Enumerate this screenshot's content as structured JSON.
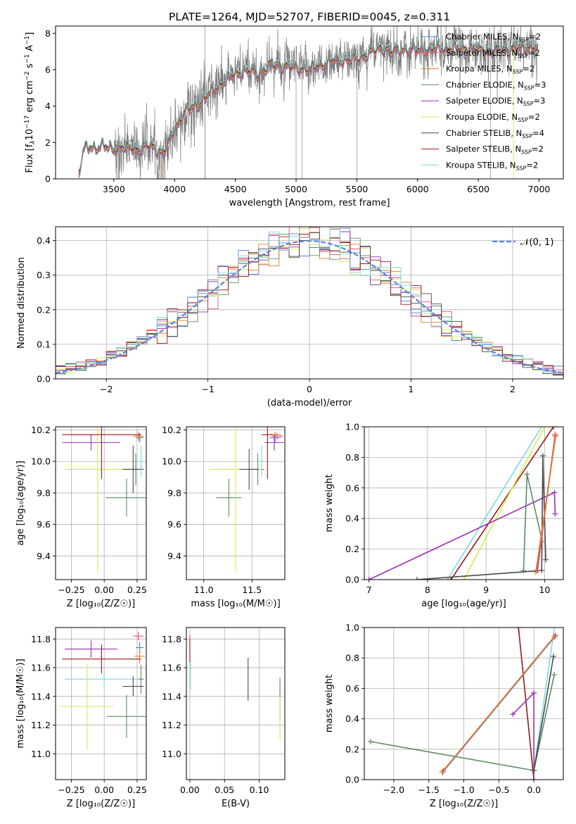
{
  "colors": {
    "chabrier_miles": "#4d7fd6",
    "salpeter_miles": "#e34f7a",
    "kroupa_miles": "#e07b22",
    "chabrier_elodie": "#5b8a62",
    "salpeter_elodie": "#9a2fb5",
    "kroupa_elodie": "#d6ea55",
    "chabrier_stelib": "#4a4a4a",
    "salpeter_stelib": "#a01515",
    "kroupa_stelib": "#7fd8e0",
    "data": "#7a7a7a",
    "gauss": "#5b86d6"
  },
  "chart_data": [
    {
      "id": "spectrum",
      "type": "line",
      "title": "PLATE=1264, MJD=52707, FIBERID=0045, z=0.311",
      "xlabel": "wavelength [Angstrom, rest frame]",
      "ylabel_parts": [
        "Flux [f",
        "λ",
        "10",
        "−17",
        " erg cm",
        "−2",
        " s",
        "−1",
        " A",
        "−1",
        "]"
      ],
      "xlim": [
        3020,
        7200
      ],
      "ylim": [
        0,
        8.4
      ],
      "xticks": [
        3500,
        4000,
        4500,
        5000,
        5500,
        6000,
        6500,
        7000
      ],
      "yticks": [
        0,
        2,
        4,
        6,
        8
      ],
      "data_start": 3210,
      "data_end": 6990,
      "model_anchors": {
        "x": [
          3210,
          3250,
          3300,
          3350,
          3400,
          3450,
          3500,
          3550,
          3600,
          3650,
          3700,
          3750,
          3800,
          3850,
          3900,
          3950,
          4000,
          4100,
          4200,
          4300,
          4400,
          4500,
          4600,
          4700,
          4800,
          4900,
          5000,
          5100,
          5200,
          5300,
          5400,
          5500,
          5600,
          5700,
          5800,
          5900,
          6000,
          6200,
          6400,
          6600,
          6800,
          6990
        ],
        "y": [
          0.3,
          1.6,
          1.75,
          1.7,
          1.85,
          1.7,
          1.65,
          1.75,
          1.7,
          1.75,
          1.6,
          1.75,
          1.85,
          1.6,
          1.4,
          2.0,
          2.8,
          3.8,
          4.1,
          4.8,
          5.3,
          5.8,
          5.95,
          5.8,
          6.3,
          6.2,
          6.1,
          6.0,
          6.25,
          6.5,
          6.5,
          6.6,
          6.9,
          7.2,
          7.0,
          7.1,
          7.05,
          7.15,
          7.2,
          7.0,
          7.2,
          7.25
        ]
      },
      "series": [
        {
          "name": "Chabrier MILES",
          "nssp": "2",
          "color_key": "chabrier_miles"
        },
        {
          "name": "Salpeter MILES",
          "nssp": "2",
          "color_key": "salpeter_miles"
        },
        {
          "name": "Kroupa MILES",
          "nssp": "2",
          "color_key": "kroupa_miles"
        },
        {
          "name": "Chabrier ELODIE",
          "nssp": "3",
          "color_key": "chabrier_elodie"
        },
        {
          "name": "Salpeter ELODIE",
          "nssp": "3",
          "color_key": "salpeter_elodie"
        },
        {
          "name": "Kroupa ELODIE",
          "nssp": "2",
          "color_key": "kroupa_elodie"
        },
        {
          "name": "Chabrier STELIB",
          "nssp": "4",
          "color_key": "chabrier_stelib"
        },
        {
          "name": "Salpeter STELIB",
          "nssp": "2",
          "color_key": "salpeter_stelib"
        },
        {
          "name": "Kroupa STELIB",
          "nssp": "2",
          "color_key": "kroupa_stelib"
        }
      ],
      "legend": "upper right",
      "grid": false
    },
    {
      "id": "residuals",
      "type": "histogram",
      "xlabel": "(data-model)/error",
      "ylabel": "Normed distribution",
      "xlim": [
        -2.5,
        2.5
      ],
      "ylim": [
        0,
        0.44
      ],
      "xticks": [
        -2,
        -1,
        0,
        1,
        2
      ],
      "yticks": [
        0.0,
        0.1,
        0.2,
        0.3,
        0.4
      ],
      "bin_width": 0.1,
      "grid": true,
      "legend": "upper right",
      "gauss_label": "𝒩(0, 1)"
    },
    {
      "id": "age_vs_Z",
      "type": "errorbar",
      "xlabel": "Z [log₁₀(Z/Z☉)]",
      "ylabel": "age  [log₁₀(age/yr)]",
      "xlim": [
        -0.37,
        0.32
      ],
      "ylim": [
        9.25,
        10.22
      ],
      "xticks": [
        -0.25,
        0.0,
        0.25
      ],
      "yticks": [
        9.4,
        9.6,
        9.8,
        10.0,
        10.2
      ],
      "grid": true,
      "points": [
        {
          "c": "chabrier_miles",
          "x": 0.27,
          "y": 10.15,
          "xe": 0.03,
          "ye": 0.03
        },
        {
          "c": "salpeter_miles",
          "x": 0.27,
          "y": 10.16,
          "xe": 0.03,
          "ye": 0.02
        },
        {
          "c": "kroupa_miles",
          "x": 0.26,
          "y": 10.16,
          "xe": 0.04,
          "ye": 0.03
        },
        {
          "c": "chabrier_elodie",
          "x": 0.17,
          "y": 9.77,
          "xe": 0.16,
          "ye": 0.12
        },
        {
          "c": "chabrier_elodie",
          "x": 0.24,
          "y": 9.95,
          "xe": 0.06,
          "ye": 0.1
        },
        {
          "c": "salpeter_elodie",
          "x": -0.1,
          "y": 10.12,
          "xe": 0.22,
          "ye": 0.05
        },
        {
          "c": "kroupa_elodie",
          "x": -0.05,
          "y": 9.95,
          "xe": 0.26,
          "ye": 0.65
        },
        {
          "c": "chabrier_stelib",
          "x": 0.22,
          "y": 9.95,
          "xe": 0.08,
          "ye": 0.15
        },
        {
          "c": "salpeter_stelib",
          "x": -0.02,
          "y": 10.17,
          "xe": 0.3,
          "ye": 0.28
        },
        {
          "c": "kroupa_stelib",
          "x": 0.28,
          "y": 10.0,
          "xe": 0.02,
          "ye": 0.1
        }
      ]
    },
    {
      "id": "age_vs_mass",
      "type": "errorbar",
      "xlabel": "mass [log₁₀(M/M☉)]",
      "ylabel": "",
      "xlim": [
        10.82,
        11.84
      ],
      "ylim": [
        9.25,
        10.22
      ],
      "xticks": [
        11.0,
        11.5
      ],
      "yticks": [
        9.4,
        9.6,
        9.8,
        10.0,
        10.2
      ],
      "grid": true,
      "points": [
        {
          "c": "chabrier_miles",
          "x": 11.74,
          "y": 10.15,
          "xe": 0.06,
          "ye": 0.03
        },
        {
          "c": "salpeter_miles",
          "x": 11.76,
          "y": 10.16,
          "xe": 0.06,
          "ye": 0.02
        },
        {
          "c": "kroupa_miles",
          "x": 11.74,
          "y": 10.17,
          "xe": 0.06,
          "ye": 0.02
        },
        {
          "c": "chabrier_elodie",
          "x": 11.26,
          "y": 9.77,
          "xe": 0.13,
          "ye": 0.12
        },
        {
          "c": "chabrier_elodie",
          "x": 11.56,
          "y": 9.95,
          "xe": 0.07,
          "ye": 0.1
        },
        {
          "c": "salpeter_elodie",
          "x": 11.73,
          "y": 10.12,
          "xe": 0.1,
          "ye": 0.05
        },
        {
          "c": "kroupa_elodie",
          "x": 11.33,
          "y": 9.95,
          "xe": 0.27,
          "ye": 0.65
        },
        {
          "c": "chabrier_stelib",
          "x": 11.47,
          "y": 9.95,
          "xe": 0.1,
          "ye": 0.13
        },
        {
          "c": "salpeter_stelib",
          "x": 11.66,
          "y": 10.17,
          "xe": 0.06,
          "ye": 0.28
        },
        {
          "c": "kroupa_stelib",
          "x": 11.6,
          "y": 10.0,
          "xe": 0.04,
          "ye": 0.1
        }
      ]
    },
    {
      "id": "massweight_vs_age",
      "type": "line",
      "xlabel": "age  [log₁₀(age/yr)]",
      "ylabel": "mass weight",
      "xlim": [
        6.92,
        10.32
      ],
      "ylim": [
        0.0,
        1.0
      ],
      "xticks": [
        7,
        8,
        9,
        10
      ],
      "yticks": [
        0.0,
        0.2,
        0.4,
        0.6,
        0.8,
        1.0
      ],
      "grid": true,
      "series": [
        {
          "c": "kroupa_stelib",
          "x": [
            8.34,
            9.98
          ],
          "y": [
            0.0,
            1.02
          ]
        },
        {
          "c": "salpeter_stelib",
          "x": [
            8.4,
            10.15
          ],
          "y": [
            0.0,
            1.0
          ]
        },
        {
          "c": "kroupa_elodie",
          "x": [
            8.62,
            10.0
          ],
          "y": [
            0.0,
            1.0
          ]
        },
        {
          "c": "salpeter_elodie",
          "x": [
            7.0,
            10.17,
            10.18
          ],
          "y": [
            0.0,
            0.57,
            0.43
          ]
        },
        {
          "c": "chabrier_stelib",
          "x": [
            7.82,
            9.95,
            9.97,
            10.02
          ],
          "y": [
            0.0,
            0.06,
            0.81,
            0.13
          ]
        },
        {
          "c": "chabrier_elodie",
          "x": [
            9.64,
            9.7,
            9.96
          ],
          "y": [
            0.06,
            0.69,
            0.25
          ]
        },
        {
          "c": "chabrier_miles",
          "x": [
            9.87,
            10.18
          ],
          "y": [
            0.06,
            0.94
          ]
        },
        {
          "c": "salpeter_miles",
          "x": [
            9.88,
            10.18
          ],
          "y": [
            0.06,
            0.95
          ]
        },
        {
          "c": "kroupa_miles",
          "x": [
            9.85,
            10.19
          ],
          "y": [
            0.05,
            0.94
          ]
        }
      ]
    },
    {
      "id": "mass_vs_Z",
      "type": "errorbar",
      "xlabel": "Z [log₁₀(Z/Z☉)]",
      "ylabel": "mass [log₁₀(M/M☉)]",
      "xlim": [
        -0.37,
        0.32
      ],
      "ylim": [
        10.82,
        11.88
      ],
      "xticks": [
        -0.25,
        0.0,
        0.25
      ],
      "yticks": [
        11.0,
        11.2,
        11.4,
        11.6,
        11.8
      ],
      "grid": true,
      "points": [
        {
          "c": "salpeter_miles",
          "x": 0.26,
          "y": 11.82,
          "xe": 0.04,
          "ye": 0.03
        },
        {
          "c": "chabrier_miles",
          "x": 0.27,
          "y": 11.74,
          "xe": 0.03,
          "ye": 0.04
        },
        {
          "c": "kroupa_miles",
          "x": 0.27,
          "y": 11.68,
          "xe": 0.04,
          "ye": 0.05
        },
        {
          "c": "salpeter_elodie",
          "x": -0.1,
          "y": 11.73,
          "xe": 0.2,
          "ye": 0.06
        },
        {
          "c": "salpeter_stelib",
          "x": -0.02,
          "y": 11.66,
          "xe": 0.3,
          "ye": 0.1
        },
        {
          "c": "kroupa_stelib",
          "x": 0.0,
          "y": 11.52,
          "xe": 0.3,
          "ye": 0.05
        },
        {
          "c": "chabrier_stelib",
          "x": 0.22,
          "y": 11.47,
          "xe": 0.08,
          "ye": 0.07
        },
        {
          "c": "kroupa_elodie",
          "x": -0.13,
          "y": 11.33,
          "xe": 0.2,
          "ye": 0.3
        },
        {
          "c": "chabrier_elodie",
          "x": 0.17,
          "y": 11.26,
          "xe": 0.15,
          "ye": 0.15
        },
        {
          "c": "chabrier_elodie",
          "x": 0.28,
          "y": 11.52,
          "xe": 0.02,
          "ye": 0.1
        }
      ]
    },
    {
      "id": "mass_vs_ebv",
      "type": "errorbar",
      "xlabel": "E(B-V)",
      "ylabel": "",
      "xlim": [
        -0.005,
        0.137
      ],
      "ylim": [
        10.82,
        11.88
      ],
      "xticks": [
        0.0,
        0.05,
        0.1
      ],
      "yticks": [
        11.0,
        11.2,
        11.4,
        11.6,
        11.8
      ],
      "grid": true,
      "points": [
        {
          "c": "salpeter_miles",
          "x": 0.0,
          "y": 11.8,
          "xe": 0.0,
          "ye": 0.03
        },
        {
          "c": "salpeter_stelib",
          "x": 0.0,
          "y": 11.72,
          "xe": 0.0,
          "ye": 0.08
        },
        {
          "c": "kroupa_stelib",
          "x": 0.001,
          "y": 11.55,
          "xe": 0.0,
          "ye": 0.1
        },
        {
          "c": "chabrier_stelib",
          "x": 0.084,
          "y": 11.52,
          "xe": 0.0,
          "ye": 0.15
        },
        {
          "c": "chabrier_elodie",
          "x": 0.13,
          "y": 11.38,
          "xe": 0.0,
          "ye": 0.15
        },
        {
          "c": "kroupa_elodie",
          "x": 0.13,
          "y": 11.25,
          "xe": 0.0,
          "ye": 0.15
        }
      ]
    },
    {
      "id": "massweight_vs_Z",
      "type": "line",
      "xlabel": "Z [log₁₀(Z/Z☉)]",
      "ylabel": "mass weight",
      "xlim": [
        -2.42,
        0.42
      ],
      "ylim": [
        0.0,
        1.0
      ],
      "xticks": [
        -2.0,
        -1.5,
        -1.0,
        -0.5,
        0.0
      ],
      "yticks": [
        0.0,
        0.2,
        0.4,
        0.6,
        0.8,
        1.0
      ],
      "grid": true,
      "series": [
        {
          "c": "chabrier_elodie",
          "x": [
            -2.33,
            0.0,
            0.29
          ],
          "y": [
            0.25,
            0.06,
            0.69
          ]
        },
        {
          "c": "salpeter_stelib",
          "x": [
            -0.22,
            0.0
          ],
          "y": [
            1.0,
            0.0
          ]
        },
        {
          "c": "salpeter_elodie",
          "x": [
            -0.3,
            0.0,
            0.0
          ],
          "y": [
            0.43,
            0.57,
            0.0
          ]
        },
        {
          "c": "kroupa_stelib",
          "x": [
            0.0,
            0.3
          ],
          "y": [
            0.06,
            1.02
          ]
        },
        {
          "c": "chabrier_stelib",
          "x": [
            0.0,
            0.28
          ],
          "y": [
            0.06,
            0.81
          ]
        },
        {
          "c": "chabrier_miles",
          "x": [
            -1.3,
            0.3
          ],
          "y": [
            0.05,
            0.94
          ]
        },
        {
          "c": "salpeter_miles",
          "x": [
            -1.29,
            0.31
          ],
          "y": [
            0.06,
            0.95
          ]
        },
        {
          "c": "kroupa_miles",
          "x": [
            -1.31,
            0.29
          ],
          "y": [
            0.05,
            0.94
          ]
        }
      ]
    }
  ]
}
